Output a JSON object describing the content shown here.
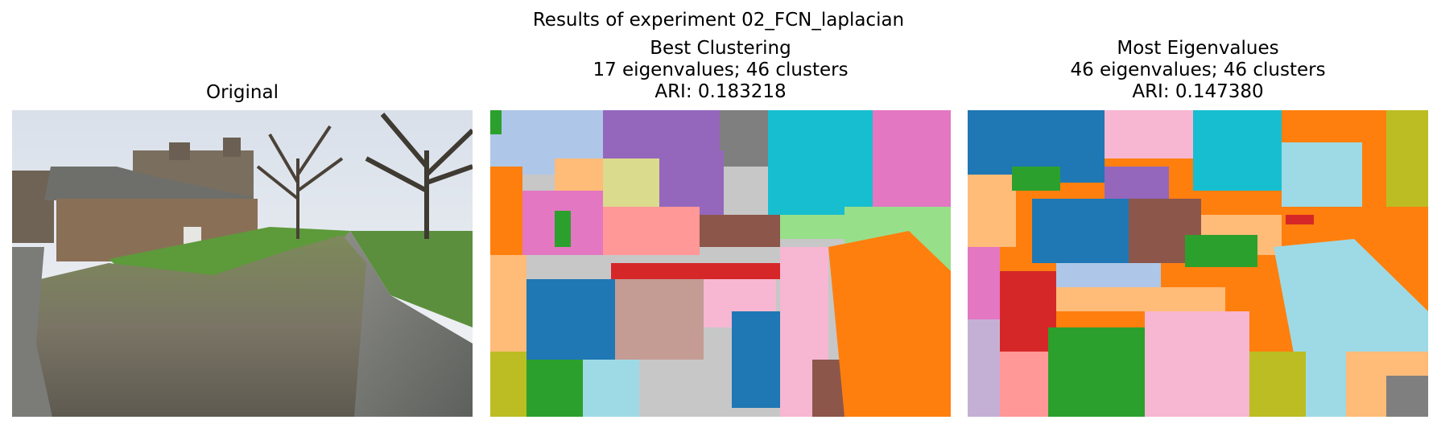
{
  "figure": {
    "suptitle": "Results of experiment 02_FCN_laplacian",
    "panels": [
      {
        "title_lines": [
          "Original"
        ]
      },
      {
        "title_lines": [
          "Best Clustering",
          "17 eigenvalues; 46 clusters",
          "ARI: 0.183218"
        ]
      },
      {
        "title_lines": [
          "Most Eigenvalues",
          "46 eigenvalues; 46 clusters",
          "ARI: 0.147380"
        ]
      }
    ]
  },
  "palette": {
    "blue": "#1f77b4",
    "light_blue": "#aec7e8",
    "orange": "#ff7f0e",
    "light_orange": "#ffbb78",
    "green": "#2ca02c",
    "light_green": "#98df8a",
    "red": "#d62728",
    "pink_salmon": "#ff9896",
    "purple": "#9467bd",
    "lavender": "#c5b0d5",
    "brown": "#8c564b",
    "tan": "#c49c94",
    "magenta": "#e377c2",
    "light_pink": "#f7b6d2",
    "gray": "#7f7f7f",
    "light_gray": "#c7c7c7",
    "olive": "#bcbd22",
    "khaki": "#dbdb8d",
    "cyan": "#17becf",
    "light_cyan": "#9edae5"
  }
}
